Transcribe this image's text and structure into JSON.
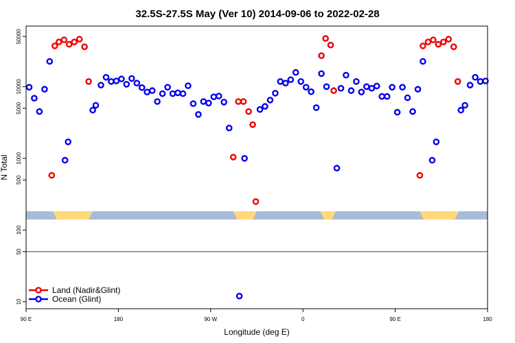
{
  "chart_data": {
    "type": "scatter",
    "title": "32.5S-27.5S May (Ver 10)   2014-09-06 to 2022-02-28",
    "xlabel": "Longitude (deg E)",
    "ylabel": "N Total",
    "x_ticks": [
      {
        "value": 90,
        "label": "90 E"
      },
      {
        "value": 180,
        "label": "180"
      },
      {
        "value": 270,
        "label": "90 W"
      },
      {
        "value": 360,
        "label": "0"
      },
      {
        "value": 450,
        "label": "90 E"
      },
      {
        "value": 540,
        "label": "180"
      }
    ],
    "xlim": [
      90,
      540
    ],
    "ylim": [
      8,
      70000
    ],
    "y_scale": "log",
    "y_ticks": [
      {
        "value": 10,
        "label": "10"
      },
      {
        "value": 50,
        "label": "50"
      },
      {
        "value": 100,
        "label": "100"
      },
      {
        "value": 500,
        "label": "500"
      },
      {
        "value": 1000,
        "label": "1000"
      },
      {
        "value": 5000,
        "label": "5000"
      },
      {
        "value": 10000,
        "label": "10000"
      },
      {
        "value": 50000,
        "label": "50000"
      }
    ],
    "reference_line": 50,
    "land_mask_band": {
      "ocean_color": "#a8bcd8",
      "land_color": "#ffd97a",
      "land_ranges": [
        [
          116,
          155
        ],
        [
          292,
          315
        ],
        [
          377,
          392
        ],
        [
          474,
          512
        ]
      ]
    },
    "legend_position": "bottom-left",
    "series": [
      {
        "name": "Land (Nadir&Glint)",
        "color": "#ee0000",
        "points": [
          [
            115,
            580
          ],
          [
            118,
            37000
          ],
          [
            122,
            42000
          ],
          [
            127,
            45000
          ],
          [
            132,
            39000
          ],
          [
            137,
            42000
          ],
          [
            142,
            46000
          ],
          [
            147,
            36000
          ],
          [
            151,
            11800
          ],
          [
            292,
            1040
          ],
          [
            297,
            6200
          ],
          [
            302,
            6200
          ],
          [
            307,
            4500
          ],
          [
            311,
            2950
          ],
          [
            314,
            250
          ],
          [
            378,
            27000
          ],
          [
            382,
            47000
          ],
          [
            387,
            38000
          ],
          [
            390,
            8800
          ],
          [
            474,
            580
          ],
          [
            477,
            37000
          ],
          [
            482,
            42000
          ],
          [
            487,
            45000
          ],
          [
            492,
            39000
          ],
          [
            497,
            42000
          ],
          [
            502,
            46000
          ],
          [
            507,
            36000
          ],
          [
            511,
            11800
          ]
        ]
      },
      {
        "name": "Ocean (Glint)",
        "color": "#0000ee",
        "points": [
          [
            93,
            9800
          ],
          [
            98,
            6900
          ],
          [
            103,
            4500
          ],
          [
            108,
            9200
          ],
          [
            113,
            22500
          ],
          [
            128,
            940
          ],
          [
            131,
            1700
          ],
          [
            155,
            4700
          ],
          [
            158,
            5500
          ],
          [
            163,
            10500
          ],
          [
            168,
            13500
          ],
          [
            173,
            11800
          ],
          [
            178,
            12000
          ],
          [
            183,
            12800
          ],
          [
            188,
            10800
          ],
          [
            193,
            13000
          ],
          [
            198,
            11200
          ],
          [
            203,
            9700
          ],
          [
            208,
            8400
          ],
          [
            213,
            8800
          ],
          [
            218,
            6200
          ],
          [
            223,
            8000
          ],
          [
            228,
            9800
          ],
          [
            233,
            8000
          ],
          [
            238,
            8200
          ],
          [
            243,
            8000
          ],
          [
            248,
            10300
          ],
          [
            253,
            5800
          ],
          [
            258,
            4100
          ],
          [
            263,
            6200
          ],
          [
            268,
            5900
          ],
          [
            273,
            7200
          ],
          [
            278,
            7400
          ],
          [
            283,
            6100
          ],
          [
            288,
            2650
          ],
          [
            298,
            12
          ],
          [
            303,
            1000
          ],
          [
            318,
            4800
          ],
          [
            323,
            5300
          ],
          [
            328,
            6500
          ],
          [
            333,
            8100
          ],
          [
            338,
            11800
          ],
          [
            343,
            11200
          ],
          [
            348,
            12500
          ],
          [
            353,
            15800
          ],
          [
            358,
            11800
          ],
          [
            363,
            9800
          ],
          [
            368,
            8500
          ],
          [
            373,
            5100
          ],
          [
            378,
            15200
          ],
          [
            383,
            10000
          ],
          [
            393,
            730
          ],
          [
            397,
            9500
          ],
          [
            402,
            14500
          ],
          [
            407,
            8800
          ],
          [
            412,
            11800
          ],
          [
            417,
            8400
          ],
          [
            422,
            10000
          ],
          [
            427,
            9500
          ],
          [
            432,
            10200
          ],
          [
            437,
            7300
          ],
          [
            442,
            7300
          ],
          [
            447,
            9800
          ],
          [
            452,
            4400
          ],
          [
            457,
            9800
          ],
          [
            462,
            7000
          ],
          [
            467,
            4500
          ],
          [
            472,
            9200
          ],
          [
            477,
            22500
          ],
          [
            486,
            940
          ],
          [
            490,
            1700
          ],
          [
            514,
            4700
          ],
          [
            518,
            5500
          ],
          [
            523,
            10500
          ],
          [
            528,
            13500
          ],
          [
            533,
            11800
          ],
          [
            538,
            12000
          ]
        ]
      }
    ]
  }
}
